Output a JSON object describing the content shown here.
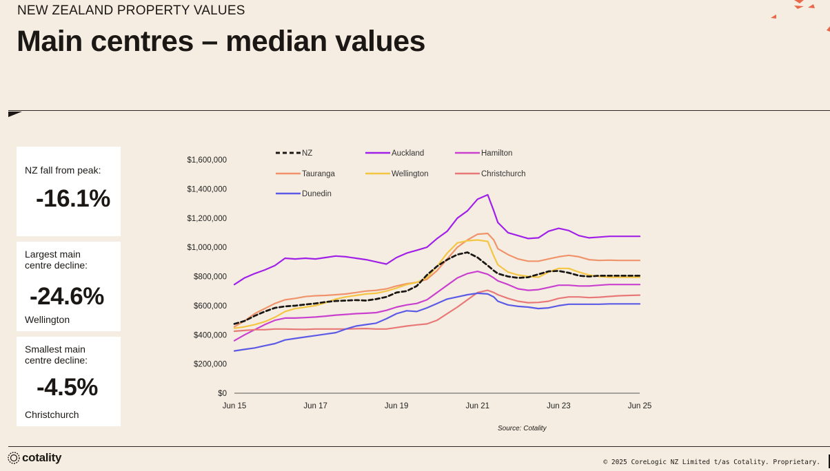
{
  "header": {
    "eyebrow": "NEW ZEALAND PROPERTY VALUES",
    "title": "Main centres – median values"
  },
  "cards": [
    {
      "label": "NZ fall from peak:",
      "value": "-16.1%",
      "sub": ""
    },
    {
      "label": "Largest main centre decline:",
      "value": "-24.6%",
      "sub": "Wellington"
    },
    {
      "label": "Smallest main centre decline:",
      "value": "-4.5%",
      "sub": "Christchurch"
    }
  ],
  "source": "Source: Cotality",
  "footer": {
    "logo": "cotality",
    "copyright": "© 2025 CoreLogic NZ Limited t/as Cotality. Proprietary."
  },
  "colors": {
    "background": "#f5ede1",
    "accent": "#e8694a"
  },
  "chart_data": {
    "type": "line",
    "title": "",
    "xlabel": "",
    "ylabel": "",
    "x": [
      2015.5,
      2015.75,
      2016.0,
      2016.25,
      2016.5,
      2016.75,
      2017.0,
      2017.25,
      2017.5,
      2017.75,
      2018.0,
      2018.25,
      2018.5,
      2018.75,
      2019.0,
      2019.25,
      2019.5,
      2019.75,
      2020.0,
      2020.25,
      2020.5,
      2020.75,
      2021.0,
      2021.25,
      2021.5,
      2021.75,
      2021.9,
      2022.0,
      2022.25,
      2022.5,
      2022.75,
      2023.0,
      2023.25,
      2023.5,
      2023.75,
      2024.0,
      2024.25,
      2024.5,
      2024.75,
      2025.0,
      2025.25,
      2025.5
    ],
    "xticks": [
      2015.5,
      2016.5,
      2017.5,
      2018.5,
      2019.5,
      2020.5,
      2021.5,
      2022.5,
      2023.5,
      2024.5,
      2025.5
    ],
    "xtick_labels": [
      "Jun 15",
      "",
      "Jun 17",
      "",
      "Jun 19",
      "",
      "Jun 21",
      "",
      "Jun 23",
      "",
      "Jun 25"
    ],
    "ylim": [
      0,
      1600000
    ],
    "yticks": [
      0,
      200000,
      400000,
      600000,
      800000,
      1000000,
      1200000,
      1400000,
      1600000
    ],
    "ytick_labels": [
      "$0",
      "$200,000",
      "$400,000",
      "$600,000",
      "$800,000",
      "$1,000,000",
      "$1,200,000",
      "$1,400,000",
      "$1,600,000"
    ],
    "series": [
      {
        "name": "NZ",
        "color": "#1a1714",
        "dashed": true,
        "values": [
          475000,
          495000,
          530000,
          560000,
          585000,
          595000,
          600000,
          608000,
          615000,
          625000,
          632000,
          635000,
          638000,
          635000,
          645000,
          660000,
          690000,
          700000,
          735000,
          810000,
          870000,
          915000,
          950000,
          965000,
          930000,
          875000,
          840000,
          820000,
          800000,
          790000,
          795000,
          815000,
          835000,
          838000,
          825000,
          805000,
          800000,
          805000,
          805000,
          805000,
          805000,
          805000
        ]
      },
      {
        "name": "Auckland",
        "color": "#a020e8",
        "dashed": false,
        "values": [
          745000,
          790000,
          820000,
          845000,
          875000,
          925000,
          920000,
          925000,
          920000,
          930000,
          940000,
          935000,
          925000,
          915000,
          900000,
          885000,
          930000,
          960000,
          980000,
          1000000,
          1060000,
          1110000,
          1200000,
          1250000,
          1330000,
          1360000,
          1250000,
          1170000,
          1100000,
          1080000,
          1060000,
          1065000,
          1110000,
          1130000,
          1115000,
          1080000,
          1065000,
          1070000,
          1075000,
          1075000,
          1075000,
          1075000
        ]
      },
      {
        "name": "Hamilton",
        "color": "#c940cf",
        "dashed": false,
        "values": [
          360000,
          400000,
          435000,
          470000,
          500000,
          515000,
          515000,
          518000,
          522000,
          528000,
          535000,
          540000,
          545000,
          548000,
          552000,
          568000,
          590000,
          605000,
          615000,
          640000,
          690000,
          740000,
          790000,
          820000,
          835000,
          815000,
          790000,
          770000,
          745000,
          715000,
          705000,
          710000,
          725000,
          740000,
          740000,
          735000,
          735000,
          740000,
          745000,
          745000,
          745000,
          745000
        ]
      },
      {
        "name": "Tauranga",
        "color": "#f0936a",
        "dashed": false,
        "values": [
          455000,
          495000,
          545000,
          580000,
          615000,
          640000,
          650000,
          662000,
          668000,
          670000,
          675000,
          680000,
          690000,
          700000,
          705000,
          715000,
          735000,
          750000,
          760000,
          780000,
          840000,
          920000,
          1000000,
          1050000,
          1090000,
          1095000,
          1050000,
          990000,
          950000,
          920000,
          905000,
          905000,
          920000,
          935000,
          945000,
          935000,
          915000,
          910000,
          912000,
          910000,
          910000,
          910000
        ]
      },
      {
        "name": "Wellington",
        "color": "#f4c542",
        "dashed": false,
        "values": [
          445000,
          455000,
          470000,
          490000,
          520000,
          560000,
          580000,
          590000,
          600000,
          620000,
          645000,
          660000,
          670000,
          680000,
          685000,
          700000,
          720000,
          745000,
          760000,
          790000,
          870000,
          960000,
          1030000,
          1045000,
          1050000,
          1040000,
          940000,
          880000,
          830000,
          810000,
          800000,
          795000,
          830000,
          855000,
          855000,
          830000,
          810000,
          800000,
          795000,
          795000,
          795000,
          795000
        ]
      },
      {
        "name": "Christchurch",
        "color": "#e87878",
        "dashed": false,
        "values": [
          425000,
          430000,
          435000,
          435000,
          440000,
          440000,
          438000,
          437000,
          440000,
          440000,
          440000,
          440000,
          442000,
          443000,
          440000,
          440000,
          450000,
          460000,
          468000,
          475000,
          500000,
          545000,
          590000,
          640000,
          690000,
          705000,
          690000,
          675000,
          650000,
          630000,
          620000,
          622000,
          630000,
          650000,
          660000,
          660000,
          655000,
          658000,
          663000,
          668000,
          670000,
          672000
        ]
      },
      {
        "name": "Dunedin",
        "color": "#5a5ae6",
        "dashed": false,
        "values": [
          290000,
          300000,
          310000,
          325000,
          340000,
          365000,
          375000,
          385000,
          395000,
          405000,
          415000,
          440000,
          460000,
          470000,
          480000,
          510000,
          545000,
          565000,
          560000,
          585000,
          615000,
          645000,
          660000,
          675000,
          685000,
          680000,
          660000,
          630000,
          605000,
          595000,
          590000,
          580000,
          585000,
          600000,
          610000,
          610000,
          610000,
          610000,
          612000,
          612000,
          612000,
          612000
        ]
      }
    ]
  }
}
